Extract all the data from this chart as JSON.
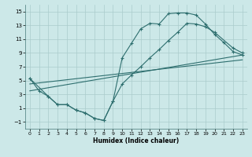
{
  "background_color": "#cce8e8",
  "grid_color": "#aacccc",
  "line_color": "#2d6e6e",
  "xlabel": "Humidex (Indice chaleur)",
  "xlim": [
    -0.5,
    23.5
  ],
  "ylim": [
    -2.0,
    16.0
  ],
  "xticks": [
    0,
    1,
    2,
    3,
    4,
    5,
    6,
    7,
    8,
    9,
    10,
    11,
    12,
    13,
    14,
    15,
    16,
    17,
    18,
    19,
    20,
    21,
    22,
    23
  ],
  "yticks": [
    -1,
    1,
    3,
    5,
    7,
    9,
    11,
    13,
    15
  ],
  "line1_x": [
    0,
    1,
    2,
    3,
    4,
    5,
    6,
    7,
    8,
    9,
    10,
    11,
    12,
    13,
    14,
    15,
    16,
    17,
    18,
    19,
    20,
    21,
    22,
    23
  ],
  "line1_y": [
    5.3,
    3.5,
    2.7,
    1.5,
    1.5,
    0.7,
    0.3,
    -0.5,
    -0.8,
    2.0,
    8.3,
    10.4,
    12.5,
    13.3,
    13.2,
    14.7,
    14.8,
    14.8,
    14.5,
    13.2,
    11.7,
    10.5,
    9.2,
    8.7
  ],
  "line2_x": [
    0,
    2,
    3,
    4,
    5,
    6,
    7,
    8,
    9,
    10,
    11,
    12,
    13,
    14,
    15,
    16,
    17,
    18,
    19,
    20,
    22,
    23
  ],
  "line2_y": [
    5.3,
    2.7,
    1.5,
    1.5,
    0.7,
    0.3,
    -0.5,
    -0.8,
    2.0,
    4.5,
    5.8,
    7.0,
    8.3,
    9.5,
    10.8,
    12.0,
    13.3,
    13.2,
    12.8,
    12.0,
    9.7,
    9.0
  ],
  "line3_x": [
    0,
    23
  ],
  "line3_y": [
    3.5,
    8.7
  ],
  "line4_x": [
    0,
    23
  ],
  "line4_y": [
    4.5,
    8.0
  ]
}
